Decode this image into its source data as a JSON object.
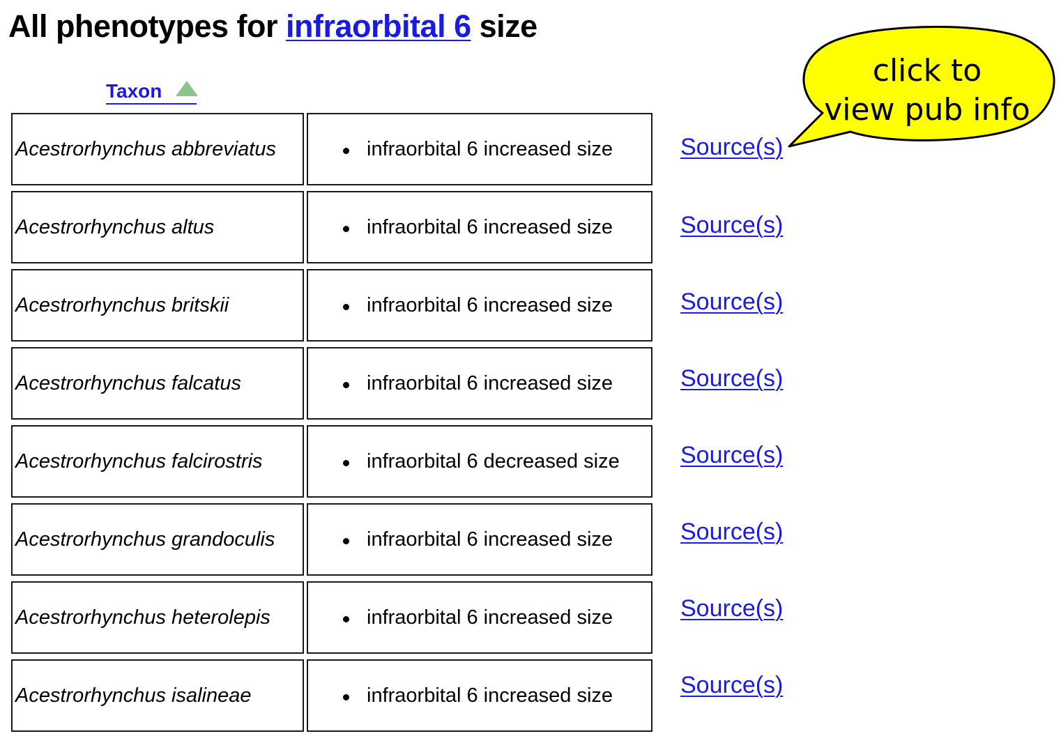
{
  "header": {
    "title_prefix": "All phenotypes for",
    "title_link": "infraorbital 6",
    "title_suffix": "size"
  },
  "table": {
    "sort_column_label": "Taxon",
    "sort_direction": "ascending",
    "rows": [
      {
        "taxon": "Acestrorhynchus abbreviatus",
        "phenotype": "infraorbital 6 increased size",
        "source": "Source(s)"
      },
      {
        "taxon": "Acestrorhynchus altus",
        "phenotype": "infraorbital 6 increased size",
        "source": "Source(s)"
      },
      {
        "taxon": "Acestrorhynchus britskii",
        "phenotype": "infraorbital 6 increased size",
        "source": "Source(s)"
      },
      {
        "taxon": "Acestrorhynchus falcatus",
        "phenotype": "infraorbital 6 increased size",
        "source": "Source(s)"
      },
      {
        "taxon": "Acestrorhynchus falcirostris",
        "phenotype": "infraorbital 6 decreased size",
        "source": "Source(s)"
      },
      {
        "taxon": "Acestrorhynchus grandoculis",
        "phenotype": "infraorbital 6 increased size",
        "source": "Source(s)"
      },
      {
        "taxon": "Acestrorhynchus heterolepis",
        "phenotype": "infraorbital 6 increased size",
        "source": "Source(s)"
      },
      {
        "taxon": "Acestrorhynchus isalineae",
        "phenotype": "infraorbital 6 increased size",
        "source": "Source(s)"
      }
    ]
  },
  "callout": {
    "line1": "click to",
    "line2": "view pub info",
    "fill_color": "#ffff00"
  },
  "colors": {
    "link": "#1a1ae6",
    "sort_arrow": "#8bc48b"
  }
}
